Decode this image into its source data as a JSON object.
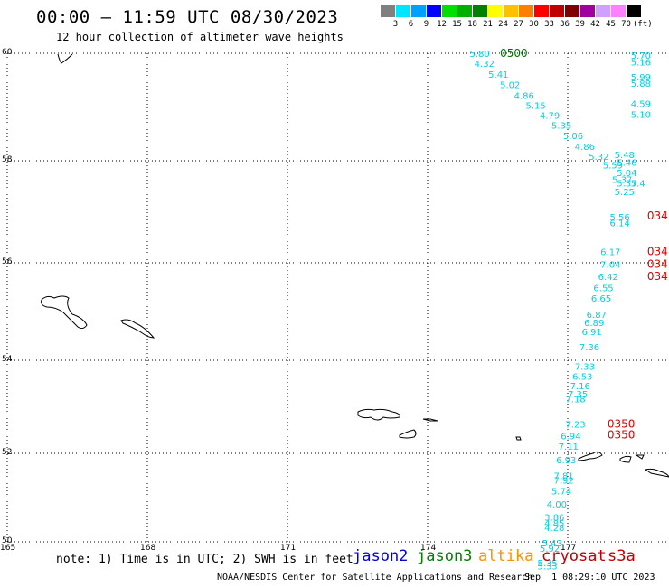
{
  "header": {
    "title": "00:00 – 11:59 UTC 08/30/2023",
    "subtitle": "12 hour collection of altimeter wave heights"
  },
  "colorbar": {
    "unit": "(ft)",
    "bins": [
      {
        "label": "3",
        "color": "#808080"
      },
      {
        "label": "6",
        "color": "#00e5ff"
      },
      {
        "label": "9",
        "color": "#00a0ff"
      },
      {
        "label": "12",
        "color": "#0000ff"
      },
      {
        "label": "15",
        "color": "#00e000"
      },
      {
        "label": "18",
        "color": "#00b000"
      },
      {
        "label": "21",
        "color": "#008000"
      },
      {
        "label": "24",
        "color": "#ffff00"
      },
      {
        "label": "27",
        "color": "#ffc000"
      },
      {
        "label": "30",
        "color": "#ff8000"
      },
      {
        "label": "33",
        "color": "#ff0000"
      },
      {
        "label": "36",
        "color": "#c00000"
      },
      {
        "label": "39",
        "color": "#800000"
      },
      {
        "label": "42",
        "color": "#a000a0"
      },
      {
        "label": "45",
        "color": "#d0a0ff"
      },
      {
        "label": "70",
        "color": "#ff80ff"
      },
      {
        "label": "",
        "color": "#000000"
      }
    ]
  },
  "axes": {
    "lat_ticks": [
      "60",
      "58",
      "56",
      "54",
      "52",
      "50"
    ],
    "lon_ticks": [
      "165",
      "168",
      "171",
      "174",
      "177"
    ]
  },
  "chart_data": {
    "type": "scatter",
    "lon_range": [
      165,
      179
    ],
    "lat_range": [
      50,
      60
    ],
    "track_color": "#00d0e0",
    "time_color_jason3": "#007000",
    "time_color_cryosat": "#e00000",
    "measurements": [
      {
        "lon": 174.9,
        "lat": 59.93,
        "value": "5.80"
      },
      {
        "lon": 175.0,
        "lat": 59.75,
        "value": "4.32"
      },
      {
        "lon": 175.3,
        "lat": 59.55,
        "value": "5.41"
      },
      {
        "lon": 175.55,
        "lat": 59.35,
        "value": "5.02"
      },
      {
        "lon": 175.85,
        "lat": 59.15,
        "value": "4.86"
      },
      {
        "lon": 176.1,
        "lat": 58.97,
        "value": "5.15"
      },
      {
        "lon": 176.4,
        "lat": 58.78,
        "value": "4.79"
      },
      {
        "lon": 176.65,
        "lat": 58.6,
        "value": "5.35"
      },
      {
        "lon": 176.9,
        "lat": 58.4,
        "value": "5.06"
      },
      {
        "lon": 177.15,
        "lat": 58.2,
        "value": "4.86"
      },
      {
        "lon": 177.45,
        "lat": 58.02,
        "value": "5.32"
      },
      {
        "lon": 177.75,
        "lat": 57.85,
        "value": "5.59"
      },
      {
        "lon": 178.0,
        "lat": 58.05,
        "value": "5.48"
      },
      {
        "lon": 178.05,
        "lat": 57.9,
        "value": "5.46"
      },
      {
        "lon": 178.05,
        "lat": 57.7,
        "value": "5.04"
      },
      {
        "lon": 177.95,
        "lat": 57.57,
        "value": "5.37"
      },
      {
        "lon": 178.05,
        "lat": 57.5,
        "value": "5.37"
      },
      {
        "lon": 178.35,
        "lat": 57.5,
        "value": "5.4"
      },
      {
        "lon": 178.0,
        "lat": 57.33,
        "value": "5.25"
      },
      {
        "lon": 178.35,
        "lat": 59.9,
        "value": "5.70"
      },
      {
        "lon": 178.35,
        "lat": 59.77,
        "value": "5.16"
      },
      {
        "lon": 178.35,
        "lat": 59.5,
        "value": "5.99"
      },
      {
        "lon": 178.35,
        "lat": 59.38,
        "value": "5.88"
      },
      {
        "lon": 178.35,
        "lat": 59.0,
        "value": "4.59"
      },
      {
        "lon": 178.35,
        "lat": 58.8,
        "value": "5.10"
      },
      {
        "lon": 177.9,
        "lat": 56.83,
        "value": "5.56"
      },
      {
        "lon": 177.9,
        "lat": 56.72,
        "value": "6.14"
      },
      {
        "lon": 177.7,
        "lat": 56.15,
        "value": "6.17"
      },
      {
        "lon": 177.7,
        "lat": 55.9,
        "value": "7.04"
      },
      {
        "lon": 177.65,
        "lat": 55.65,
        "value": "6.42"
      },
      {
        "lon": 177.55,
        "lat": 55.42,
        "value": "6.55"
      },
      {
        "lon": 177.5,
        "lat": 55.2,
        "value": "6.65"
      },
      {
        "lon": 177.4,
        "lat": 54.87,
        "value": "6.87"
      },
      {
        "lon": 177.35,
        "lat": 54.7,
        "value": "6.89"
      },
      {
        "lon": 177.3,
        "lat": 54.52,
        "value": "6.91"
      },
      {
        "lon": 177.25,
        "lat": 54.2,
        "value": "7.36"
      },
      {
        "lon": 177.15,
        "lat": 53.8,
        "value": "7.33"
      },
      {
        "lon": 177.1,
        "lat": 53.58,
        "value": "6.53"
      },
      {
        "lon": 177.05,
        "lat": 53.38,
        "value": "7.16"
      },
      {
        "lon": 177.0,
        "lat": 53.2,
        "value": "7.35"
      },
      {
        "lon": 176.95,
        "lat": 53.1,
        "value": "7.18"
      },
      {
        "lon": 176.95,
        "lat": 52.55,
        "value": "7.23"
      },
      {
        "lon": 176.85,
        "lat": 52.3,
        "value": "6.94"
      },
      {
        "lon": 176.8,
        "lat": 52.08,
        "value": "7.11"
      },
      {
        "lon": 176.75,
        "lat": 51.78,
        "value": "6.93"
      },
      {
        "lon": 176.7,
        "lat": 51.42,
        "value": "7.81"
      },
      {
        "lon": 176.7,
        "lat": 51.32,
        "value": "7.92"
      },
      {
        "lon": 176.65,
        "lat": 51.07,
        "value": "5.74"
      },
      {
        "lon": 176.55,
        "lat": 50.78,
        "value": "4.00"
      },
      {
        "lon": 176.5,
        "lat": 50.48,
        "value": "3.86"
      },
      {
        "lon": 176.5,
        "lat": 50.35,
        "value": "4.85"
      },
      {
        "lon": 176.5,
        "lat": 50.25,
        "value": "4.28"
      },
      {
        "lon": 176.45,
        "lat": 49.9,
        "value": "5.43"
      },
      {
        "lon": 176.4,
        "lat": 49.78,
        "value": "5.92"
      },
      {
        "lon": 176.35,
        "lat": 49.45,
        "value": "5.35"
      },
      {
        "lon": 176.35,
        "lat": 49.38,
        "value": "5.33"
      }
    ],
    "time_labels": [
      {
        "lon": 175.55,
        "lat": 59.93,
        "text": "0500",
        "sat": "jason3"
      },
      {
        "lon": 178.7,
        "lat": 56.85,
        "text": "034",
        "sat": "cryosat"
      },
      {
        "lon": 178.7,
        "lat": 56.15,
        "text": "034",
        "sat": "cryosat"
      },
      {
        "lon": 178.7,
        "lat": 55.9,
        "text": "034",
        "sat": "cryosat"
      },
      {
        "lon": 178.7,
        "lat": 55.65,
        "text": "034",
        "sat": "cryosat"
      },
      {
        "lon": 177.85,
        "lat": 52.55,
        "text": "0350",
        "sat": "cryosat"
      },
      {
        "lon": 177.85,
        "lat": 52.32,
        "text": "0350",
        "sat": "cryosat"
      }
    ]
  },
  "footer": {
    "note": "note: 1) Time is in UTC; 2) SWH is in feet",
    "satellites": [
      {
        "name": "jason2",
        "color": "#0000e0"
      },
      {
        "name": "jason3",
        "color": "#008000"
      },
      {
        "name": "altika",
        "color": "#ff9000"
      },
      {
        "name": "cryosat",
        "color": "#c00000"
      },
      {
        "name": "s3a",
        "color": "#c00000"
      }
    ],
    "credit": "NOAA/NESDIS Center for Satellite Applications and Research",
    "credit_date": "Sep  1 08:29:10 UTC 2023"
  }
}
